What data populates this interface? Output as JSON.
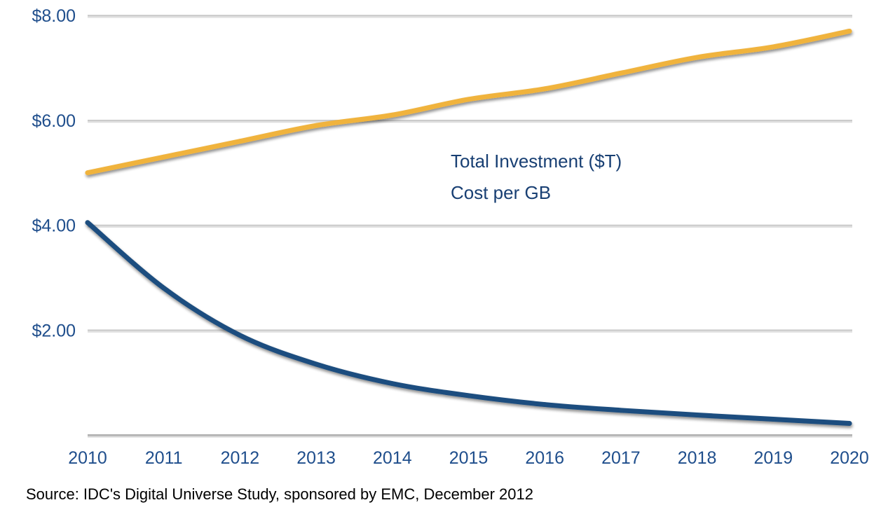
{
  "chart_data": {
    "type": "line",
    "title": "",
    "xlabel": "",
    "ylabel": "",
    "x": [
      2010,
      2011,
      2012,
      2013,
      2014,
      2015,
      2016,
      2017,
      2018,
      2019,
      2020
    ],
    "x_tick_labels": [
      "2010",
      "2011",
      "2012",
      "2013",
      "2014",
      "2015",
      "2016",
      "2017",
      "2018",
      "2019",
      "2020"
    ],
    "y_tick_values": [
      2,
      4,
      6,
      8
    ],
    "y_tick_labels": [
      "$2.00",
      "$4.00",
      "$6.00",
      "$8.00"
    ],
    "ylim": [
      0,
      8
    ],
    "xlim": [
      2010,
      2020
    ],
    "grid": "horizontal",
    "legend_position": "center",
    "series": [
      {
        "name": "Total Investment ($T)",
        "color": "#f0b33c",
        "values": [
          5.0,
          5.3,
          5.6,
          5.9,
          6.1,
          6.4,
          6.6,
          6.9,
          7.2,
          7.4,
          7.7
        ]
      },
      {
        "name": "Cost per GB",
        "color": "#1d4e7f",
        "values": [
          4.05,
          2.8,
          1.9,
          1.35,
          0.98,
          0.75,
          0.58,
          0.47,
          0.38,
          0.3,
          0.22
        ]
      }
    ]
  },
  "source": "Source: IDC's Digital Universe Study, sponsored by EMC, December 2012"
}
